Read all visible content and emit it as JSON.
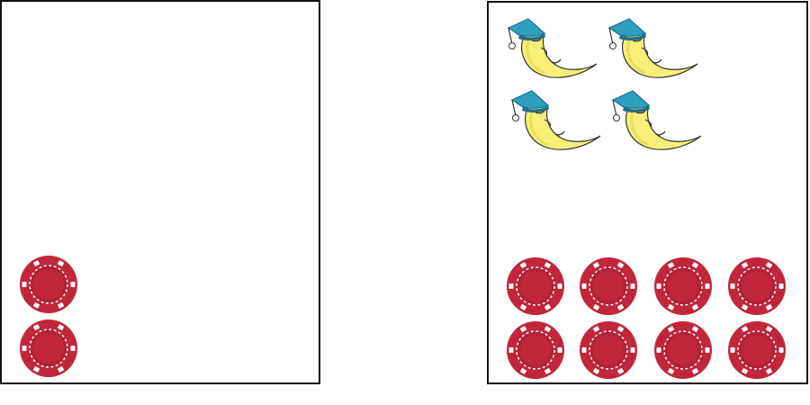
{
  "colors": {
    "chip_red": "#c1263a",
    "chip_dark": "#9e1a2c",
    "chip_dash": "#ffffff",
    "moon_yellow": "#f6ef7a",
    "moon_shade": "#d8cf3a",
    "cap_blue": "#2f9fc0",
    "cap_dark": "#1f6f8a",
    "outline": "#333333"
  },
  "panels": [
    {
      "name": "left",
      "moons": 0,
      "chips": 2
    },
    {
      "name": "right",
      "moons": 4,
      "chips": 8
    }
  ],
  "icons": {
    "chip": "poker-chip-icon",
    "moon": "sleeping-moon-icon"
  }
}
